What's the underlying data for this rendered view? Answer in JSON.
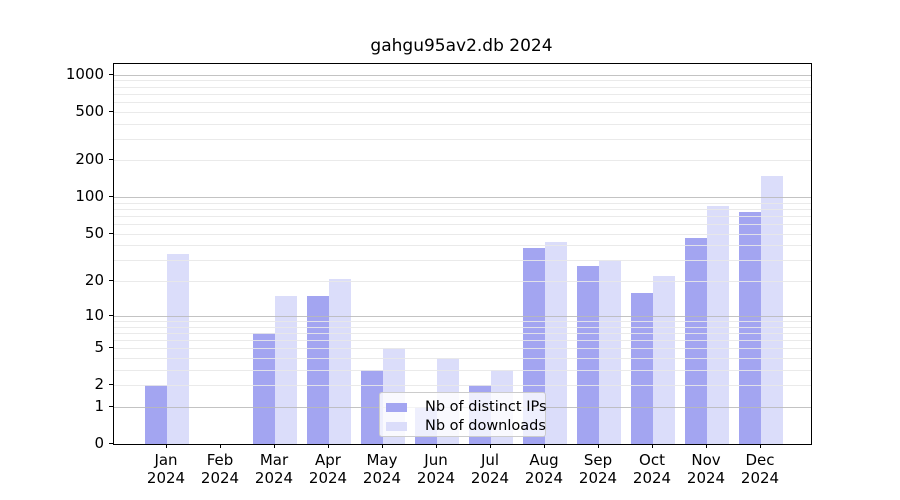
{
  "figure": {
    "background": "#ffffff"
  },
  "chart_data": {
    "type": "bar",
    "title": "gahgu95av2.db 2024",
    "categories": [
      "Jan",
      "Feb",
      "Mar",
      "Apr",
      "May",
      "Jun",
      "Jul",
      "Aug",
      "Sep",
      "Oct",
      "Nov",
      "Dec"
    ],
    "category_year": "2024",
    "series": [
      {
        "name": "Nb of distinct IPs",
        "color": "#a3a5f1",
        "values": [
          2,
          0,
          7,
          15,
          3,
          1,
          2,
          38,
          27,
          16,
          46,
          76
        ]
      },
      {
        "name": "Nb of downloads",
        "color": "#dbddfa",
        "values": [
          34,
          0,
          15,
          21,
          5,
          4,
          3,
          43,
          30,
          22,
          84,
          150
        ]
      }
    ],
    "yscale": "log1p",
    "ylim": [
      0,
      1200
    ],
    "yticks": [
      0,
      1,
      2,
      5,
      10,
      20,
      50,
      100,
      200,
      500,
      1000
    ],
    "major_grid_values": [
      1,
      10,
      100,
      1000
    ],
    "minor_grid_values": [
      2,
      3,
      4,
      5,
      6,
      7,
      8,
      9,
      20,
      30,
      40,
      50,
      60,
      70,
      80,
      90,
      200,
      300,
      400,
      500,
      600,
      700,
      800,
      900
    ],
    "grid": true,
    "legend_position": "lower center",
    "colors": {
      "major_grid": "#b9b9b9",
      "minor_grid": "#e8e8e8",
      "axis": "#000000",
      "legend_border": "#cccccc",
      "text": "#000000"
    }
  }
}
